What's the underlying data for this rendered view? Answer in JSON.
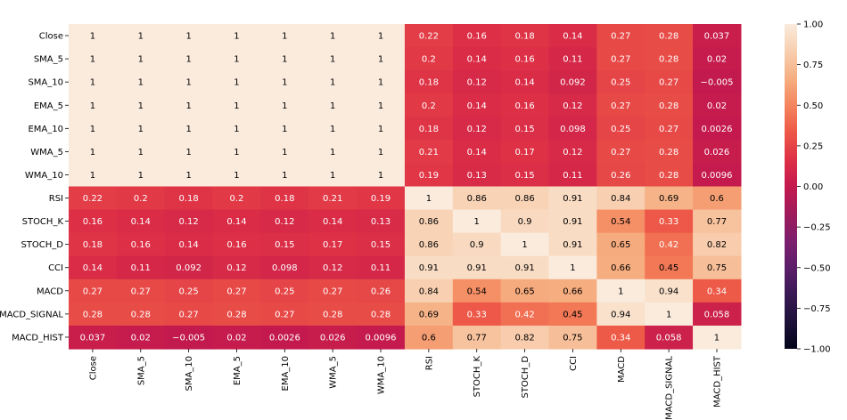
{
  "chart_data": {
    "type": "heatmap",
    "title": "",
    "row_labels": [
      "Close",
      "SMA_5",
      "SMA_10",
      "EMA_5",
      "EMA_10",
      "WMA_5",
      "WMA_10",
      "RSI",
      "STOCH_K",
      "STOCH_D",
      "CCI",
      "MACD",
      "MACD_SIGNAL",
      "MACD_HIST"
    ],
    "col_labels": [
      "Close",
      "SMA_5",
      "SMA_10",
      "EMA_5",
      "EMA_10",
      "WMA_5",
      "WMA_10",
      "RSI",
      "STOCH_K",
      "STOCH_D",
      "CCI",
      "MACD",
      "MACD_SIGNAL",
      "MACD_HIST"
    ],
    "values": [
      [
        1,
        1,
        1,
        1,
        1,
        1,
        1,
        0.22,
        0.16,
        0.18,
        0.14,
        0.27,
        0.28,
        0.037
      ],
      [
        1,
        1,
        1,
        1,
        1,
        1,
        1,
        0.2,
        0.14,
        0.16,
        0.11,
        0.27,
        0.28,
        0.02
      ],
      [
        1,
        1,
        1,
        1,
        1,
        1,
        1,
        0.18,
        0.12,
        0.14,
        0.092,
        0.25,
        0.27,
        -0.005
      ],
      [
        1,
        1,
        1,
        1,
        1,
        1,
        1,
        0.2,
        0.14,
        0.16,
        0.12,
        0.27,
        0.28,
        0.02
      ],
      [
        1,
        1,
        1,
        1,
        1,
        1,
        1,
        0.18,
        0.12,
        0.15,
        0.098,
        0.25,
        0.27,
        0.0026
      ],
      [
        1,
        1,
        1,
        1,
        1,
        1,
        1,
        0.21,
        0.14,
        0.17,
        0.12,
        0.27,
        0.28,
        0.026
      ],
      [
        1,
        1,
        1,
        1,
        1,
        1,
        1,
        0.19,
        0.13,
        0.15,
        0.11,
        0.26,
        0.28,
        0.0096
      ],
      [
        0.22,
        0.2,
        0.18,
        0.2,
        0.18,
        0.21,
        0.19,
        1,
        0.86,
        0.86,
        0.91,
        0.84,
        0.69,
        0.6
      ],
      [
        0.16,
        0.14,
        0.12,
        0.14,
        0.12,
        0.14,
        0.13,
        0.86,
        1,
        0.9,
        0.91,
        0.54,
        0.33,
        0.77
      ],
      [
        0.18,
        0.16,
        0.14,
        0.16,
        0.15,
        0.17,
        0.15,
        0.86,
        0.9,
        1,
        0.91,
        0.65,
        0.42,
        0.82
      ],
      [
        0.14,
        0.11,
        0.092,
        0.12,
        0.098,
        0.12,
        0.11,
        0.91,
        0.91,
        0.91,
        1,
        0.66,
        0.45,
        0.75
      ],
      [
        0.27,
        0.27,
        0.25,
        0.27,
        0.25,
        0.27,
        0.26,
        0.84,
        0.54,
        0.65,
        0.66,
        1,
        0.94,
        0.34
      ],
      [
        0.28,
        0.28,
        0.27,
        0.28,
        0.27,
        0.28,
        0.28,
        0.69,
        0.33,
        0.42,
        0.45,
        0.94,
        1,
        0.058
      ],
      [
        0.037,
        0.02,
        -0.005,
        0.02,
        0.0026,
        0.026,
        0.0096,
        0.6,
        0.77,
        0.82,
        0.75,
        0.34,
        0.058,
        1
      ]
    ],
    "colorbar": {
      "vmin": -1.0,
      "vmax": 1.0,
      "tick_values": [
        1.0,
        0.75,
        0.5,
        0.25,
        0.0,
        -0.25,
        -0.5,
        -0.75,
        -1.0
      ],
      "tick_labels": [
        "1.00",
        "0.75",
        "0.50",
        "0.25",
        "0.00",
        "−0.25",
        "−0.50",
        "−0.75",
        "−1.00"
      ]
    },
    "colormap": "rocket",
    "colors": {
      "background": "#ffffff",
      "text_dark_cell": "#ffffff",
      "text_light_cell": "#000000",
      "axis_text": "#000000"
    }
  }
}
